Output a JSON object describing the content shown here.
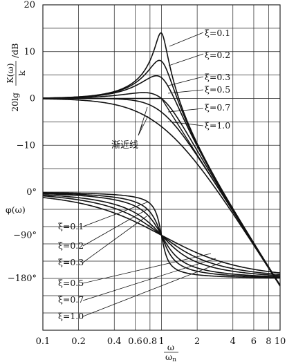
{
  "chart_data": {
    "type": "line",
    "x_scale": "log",
    "xlim": [
      0.1,
      10
    ],
    "x_ticks": [
      "0.1",
      "0.2",
      "0.4",
      "0.6",
      "0.8",
      "1",
      "2",
      "4",
      "6",
      "8",
      "10"
    ],
    "x_tick_values": [
      0.1,
      0.2,
      0.4,
      0.6,
      0.8,
      1,
      2,
      4,
      6,
      8,
      10
    ],
    "xlabel_num": "ω",
    "xlabel_den": "ωn",
    "magnitude": {
      "ylabel": "20lg K(ω)/k /dB",
      "ylim": [
        -20,
        20
      ],
      "y_ticks": [
        "20",
        "10",
        "0",
        "−10"
      ],
      "y_tick_values": [
        20,
        10,
        0,
        -10
      ]
    },
    "phase": {
      "ylabel": "φ(ω)",
      "ylim": [
        -180,
        0
      ],
      "y_ticks": [
        "0°",
        "−90°",
        "−180°"
      ],
      "y_tick_values": [
        0,
        -90,
        -180
      ]
    },
    "damping_ratios": [
      0.1,
      0.2,
      0.3,
      0.5,
      0.7,
      1.0
    ],
    "magnitude_labels": [
      "ξ=0.1",
      "ξ=0.2",
      "ξ=0.3",
      "ξ=0.5",
      "ξ=0.7",
      "ξ=1.0"
    ],
    "phase_labels": [
      "ξ=0.1",
      "ξ=0.2",
      "ξ=0.3",
      "ξ=0.5",
      "ξ=0.7",
      "ξ=1.0"
    ],
    "asymptote_label": "渐近线",
    "grid": true
  }
}
